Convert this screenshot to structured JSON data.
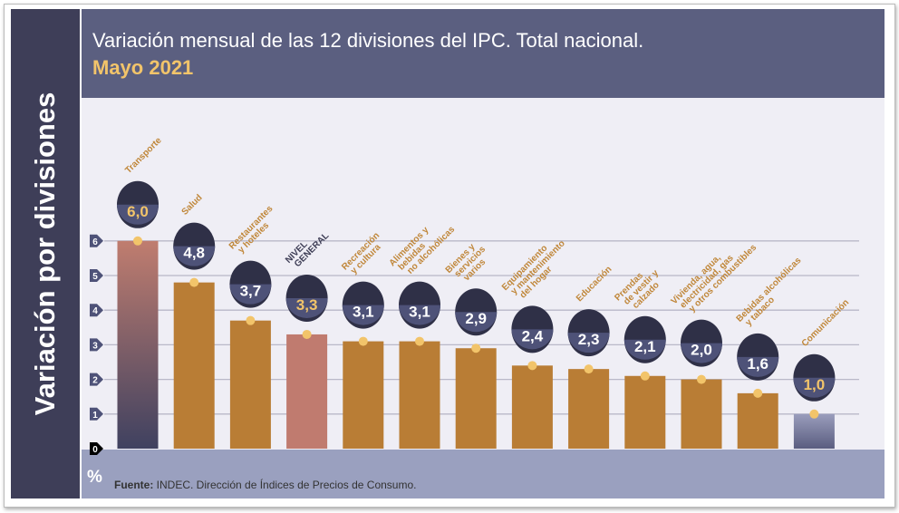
{
  "title": "Variación mensual de las 12 divisiones del IPC. Total nacional.",
  "subtitle": "Mayo 2021",
  "side_label": "Variación por divisiones",
  "unit": "%",
  "source": {
    "bold": "Fuente:",
    "text": " INDEC. Dirección de Índices de Precios de Consumo."
  },
  "colors": {
    "bar": "#b97d35",
    "nivel_general": "#c07b6f",
    "transporte_top": "#c07d6f",
    "transporte_bottom": "#3f4160",
    "comunicacion_top": "#9a9dbc",
    "comunicacion_bottom": "#5a5d80",
    "badge": "#4e5278",
    "label": "#c0873a",
    "label_general": "#3d3d55",
    "dot": "#f2c46a"
  },
  "chart_data": {
    "type": "bar",
    "ylim": [
      0,
      6.2
    ],
    "yticks": [
      0,
      1,
      2,
      3,
      4,
      5,
      6
    ],
    "grid": true,
    "categories": [
      {
        "label": [
          "Transporte"
        ],
        "value": 6.0,
        "value_label": "6,0",
        "icon": "sube-card-car-icon"
      },
      {
        "label": [
          "Salud"
        ],
        "value": 4.8,
        "value_label": "4,8",
        "icon": "first-aid-kit-icon"
      },
      {
        "label": [
          "Restaurantes",
          "y hoteles"
        ],
        "value": 3.7,
        "value_label": "3,7",
        "icon": "plate-plane-icon"
      },
      {
        "label": [
          "NIVEL",
          "GENERAL"
        ],
        "value": 3.3,
        "value_label": "3,3",
        "icon": "shopping-basket-icon"
      },
      {
        "label": [
          "Recreación",
          "y cultura"
        ],
        "value": 3.1,
        "value_label": "3,1",
        "icon": "beach-icon"
      },
      {
        "label": [
          "Alimentos y",
          "bebidas",
          "no alcohólicas"
        ],
        "value": 3.1,
        "value_label": "3,1",
        "icon": "roast-chicken-icon"
      },
      {
        "label": [
          "Bienes y",
          "servicios",
          "varios"
        ],
        "value": 2.9,
        "value_label": "2,9",
        "icon": "comb-scissors-icon"
      },
      {
        "label": [
          "Equipamiento",
          "y mantenimiento",
          "del hogar"
        ],
        "value": 2.4,
        "value_label": "2,4",
        "icon": "washing-machine-icon"
      },
      {
        "label": [
          "Educación"
        ],
        "value": 2.3,
        "value_label": "2,3",
        "icon": "book-pencil-icon"
      },
      {
        "label": [
          "Prendas",
          "de vestir y",
          "calzado"
        ],
        "value": 2.1,
        "value_label": "2,1",
        "icon": "tshirt-shoe-icon"
      },
      {
        "label": [
          "Vivienda, agua,",
          "electricidad, gas",
          "y otros combustibles"
        ],
        "value": 2.0,
        "value_label": "2,0",
        "icon": "lightbulb-icon"
      },
      {
        "label": [
          "Bebidas alcohólicas",
          "y tabaco"
        ],
        "value": 1.6,
        "value_label": "1,6",
        "icon": "bottle-icon"
      },
      {
        "label": [
          "Comunicación"
        ],
        "value": 1.0,
        "value_label": "1,0",
        "icon": "smartphone-icon"
      }
    ]
  }
}
